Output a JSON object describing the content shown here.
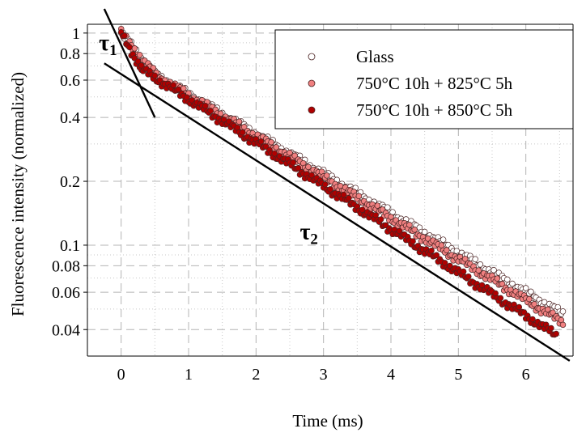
{
  "chart_data": {
    "type": "scatter",
    "xlabel": "Time (ms)",
    "ylabel": "Fluorescence intensity (normalized)",
    "xlim": [
      -0.5,
      6.7
    ],
    "ylim": [
      0.03,
      1.1
    ],
    "yscale": "log",
    "grid": true,
    "legend_position": "top-right",
    "x_ticks": [
      0,
      1,
      2,
      3,
      4,
      5,
      6
    ],
    "y_ticks": [
      0.04,
      0.06,
      0.08,
      0.1,
      0.2,
      0.4,
      0.6,
      0.8,
      1
    ],
    "y_tick_labels": [
      "0.04",
      "0.06",
      "0.08",
      "0.1",
      "0.2",
      "0.4",
      "0.6",
      "0.8",
      "1"
    ],
    "series": [
      {
        "name": "Glass",
        "color": "#ffffff",
        "decays": [
          {
            "start": 0.0,
            "end": 0.5,
            "y0": 1.0,
            "rate": 0.9
          },
          {
            "start": 0.5,
            "end": 6.55,
            "y0": 0.637,
            "rate": 0.43
          }
        ],
        "floor": 0.043
      },
      {
        "name": "750°C 10h + 825°C 5h",
        "color": "#f08080",
        "decays": [
          {
            "start": 0.0,
            "end": 0.5,
            "y0": 1.0,
            "rate": 0.9
          },
          {
            "start": 0.5,
            "end": 6.55,
            "y0": 0.637,
            "rate": 0.445
          }
        ],
        "floor": 0.035
      },
      {
        "name": "750°C 10h + 850°C 5h",
        "color": "#b00000",
        "decays": [
          {
            "start": 0.0,
            "end": 0.3,
            "y0": 1.0,
            "rate": 1.3
          },
          {
            "start": 0.3,
            "end": 6.45,
            "y0": 0.677,
            "rate": 0.47
          }
        ],
        "floor": 0.033
      }
    ],
    "fits": [
      {
        "label": "τ1",
        "points": [
          [
            -0.25,
            1.3
          ],
          [
            0.5,
            0.4
          ]
        ]
      },
      {
        "label": "τ2",
        "points": [
          [
            -0.25,
            0.72
          ],
          [
            6.65,
            0.0285
          ]
        ]
      }
    ],
    "annotations": [
      {
        "text": "τ",
        "sub": "1",
        "x": -0.33,
        "y": 0.83
      },
      {
        "text": "τ",
        "sub": "2",
        "x": 2.65,
        "y": 0.107
      }
    ]
  }
}
